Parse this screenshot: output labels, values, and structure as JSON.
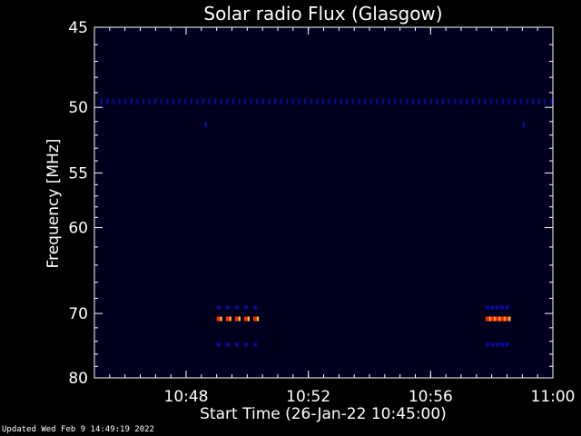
{
  "chart_data": {
    "type": "heatmap",
    "title": "Solar radio Flux (Glasgow)",
    "xlabel": "Start Time (26-Jan-22 10:45:00)",
    "ylabel": "Frequency [MHz]",
    "x_range_minutes": [
      0,
      15
    ],
    "x_ticks": [
      {
        "minute": 3,
        "label": "10:48"
      },
      {
        "minute": 7,
        "label": "10:52"
      },
      {
        "minute": 11,
        "label": "10:56"
      },
      {
        "minute": 15,
        "label": "11:00"
      }
    ],
    "y_ticks_mhz": [
      {
        "value": 45,
        "label": "45"
      },
      {
        "value": 50,
        "label": "50"
      },
      {
        "value": 55,
        "label": "55"
      },
      {
        "value": 60,
        "label": "60"
      },
      {
        "value": 70,
        "label": "70"
      },
      {
        "value": 80,
        "label": "80"
      }
    ],
    "features": [
      {
        "name": "interference-band",
        "freq_mhz": 49.6,
        "minute_start": 0.2,
        "minute_end": 15.0,
        "intensity": "low"
      },
      {
        "name": "burst-1",
        "freq_mhz": 70.8,
        "minute_start": 4.0,
        "minute_end": 5.5,
        "intensity": "high"
      },
      {
        "name": "burst-2",
        "freq_mhz": 70.8,
        "minute_start": 12.8,
        "minute_end": 13.6,
        "intensity": "high"
      }
    ],
    "background_color": "#00001e",
    "colors": {
      "low": "#0a0aa0",
      "high": "#ff2a00",
      "mid": "#ffd040"
    }
  },
  "footer": "Updated Wed Feb  9 14:49:19 2022"
}
